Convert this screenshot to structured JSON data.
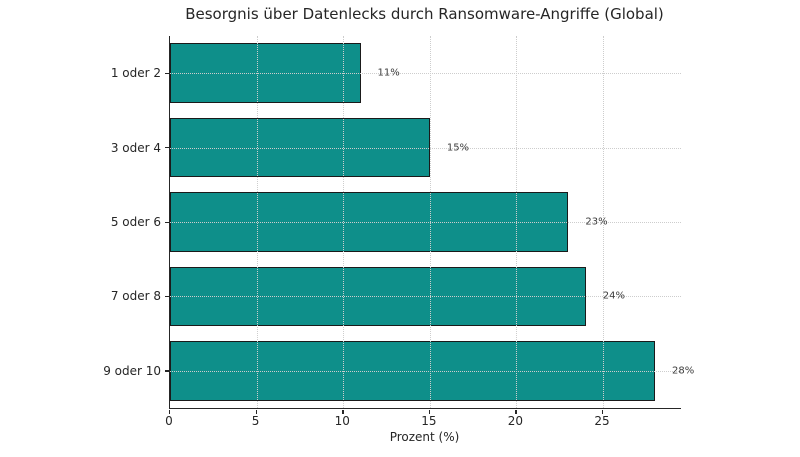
{
  "chart_data": {
    "type": "bar",
    "orientation": "horizontal",
    "title": "Besorgnis über Datenlecks durch Ransomware-Angriffe (Global)",
    "categories": [
      "1 oder 2",
      "3 oder 4",
      "5 oder 6",
      "7 oder 8",
      "9 oder 10"
    ],
    "values": [
      11,
      15,
      23,
      24,
      28
    ],
    "value_labels": [
      "11%",
      "15%",
      "23%",
      "24%",
      "28%"
    ],
    "xlabel": "Prozent (%)",
    "ylabel": "",
    "xlim": [
      0,
      29.5
    ],
    "xticks": [
      0,
      5,
      10,
      15,
      20,
      25
    ],
    "grid": true,
    "grid_style": "dotted",
    "legend": "none",
    "bar_color": "#0e8f8a",
    "bar_edge_color": "#1a1a1a",
    "grid_color": "#cdcdcd",
    "text_color": "#262626",
    "value_label_color": "#3d3d3d"
  }
}
